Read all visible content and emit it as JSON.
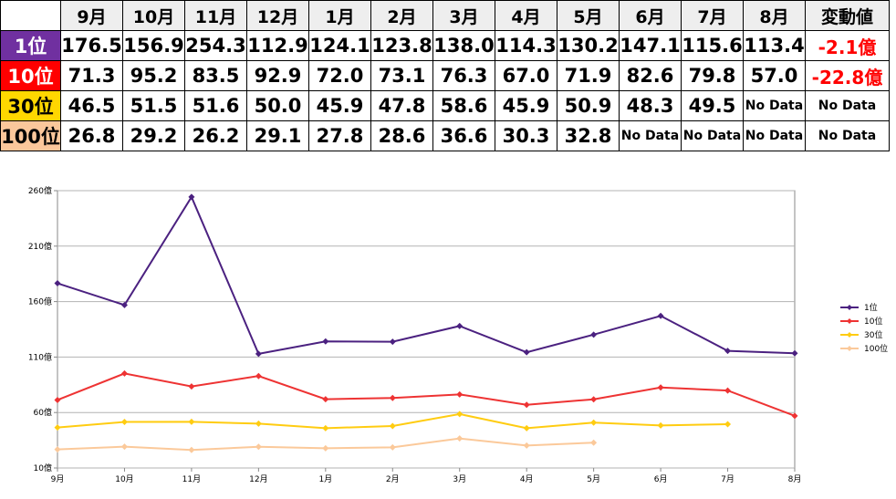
{
  "table": {
    "months": [
      "9月",
      "10月",
      "11月",
      "12月",
      "1月",
      "2月",
      "3月",
      "4月",
      "5月",
      "6月",
      "7月",
      "8月"
    ],
    "change_header": "変動値",
    "rows": [
      {
        "rank": "1位",
        "bg": "#7030a0",
        "fg": "#ffffff",
        "values": [
          "176.5",
          "156.9",
          "254.3",
          "112.9",
          "124.1",
          "123.8",
          "138.0",
          "114.3",
          "130.2",
          "147.1",
          "115.6",
          "113.4"
        ],
        "change": "-2.1億"
      },
      {
        "rank": "10位",
        "bg": "#ff0000",
        "fg": "#ffffff",
        "values": [
          "71.3",
          "95.2",
          "83.5",
          "92.9",
          "72.0",
          "73.1",
          "76.3",
          "67.0",
          "71.9",
          "82.6",
          "79.8",
          "57.0"
        ],
        "change": "-22.8億"
      },
      {
        "rank": "30位",
        "bg": "#ffd700",
        "fg": "#000000",
        "values": [
          "46.5",
          "51.5",
          "51.6",
          "50.0",
          "45.9",
          "47.8",
          "58.6",
          "45.9",
          "50.9",
          "48.3",
          "49.5",
          "No Data"
        ],
        "change": "No Data"
      },
      {
        "rank": "100位",
        "bg": "#fbc79b",
        "fg": "#000000",
        "values": [
          "26.8",
          "29.2",
          "26.2",
          "29.1",
          "27.8",
          "28.6",
          "36.6",
          "30.3",
          "32.8",
          "No Data",
          "No Data",
          "No Data"
        ],
        "change": "No Data"
      }
    ]
  },
  "chart_data": {
    "type": "line",
    "categories": [
      "9月",
      "10月",
      "11月",
      "12月",
      "1月",
      "2月",
      "3月",
      "4月",
      "5月",
      "6月",
      "7月",
      "8月"
    ],
    "y_ticks": [
      10,
      60,
      110,
      160,
      210,
      260
    ],
    "y_tick_suffix": "億",
    "ylim": [
      10,
      260
    ],
    "grid": true,
    "legend_position": "right",
    "series": [
      {
        "name": "1位",
        "color": "#4b2180",
        "values": [
          176.5,
          156.9,
          254.3,
          112.9,
          124.1,
          123.8,
          138.0,
          114.3,
          130.2,
          147.1,
          115.6,
          113.4
        ]
      },
      {
        "name": "10位",
        "color": "#ee3333",
        "values": [
          71.3,
          95.2,
          83.5,
          92.9,
          72.0,
          73.1,
          76.3,
          67.0,
          71.9,
          82.6,
          79.8,
          57.0
        ]
      },
      {
        "name": "30位",
        "color": "#ffcc11",
        "values": [
          46.5,
          51.5,
          51.6,
          50.0,
          45.9,
          47.8,
          58.6,
          45.9,
          50.9,
          48.3,
          49.5,
          null
        ]
      },
      {
        "name": "100位",
        "color": "#fbc99a",
        "values": [
          26.8,
          29.2,
          26.2,
          29.1,
          27.8,
          28.6,
          36.6,
          30.3,
          32.8,
          null,
          null,
          null
        ]
      }
    ]
  }
}
